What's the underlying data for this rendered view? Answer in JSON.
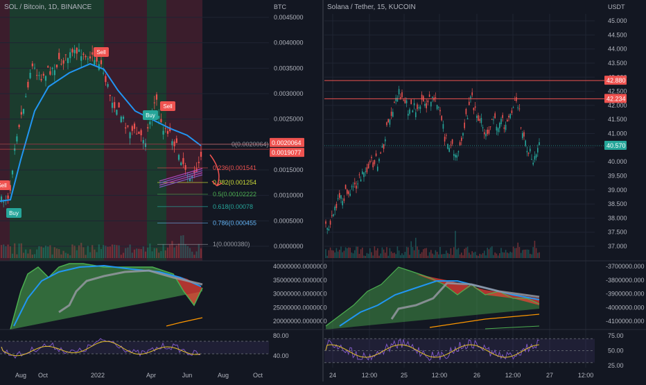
{
  "colors": {
    "background": "#131722",
    "grid": "#1f2433",
    "axis_text": "#b2b5be",
    "green_bg": "#1f4a33",
    "red_bg": "#4a2030",
    "up": "#26a69a",
    "down": "#ef5350",
    "ma_blue": "#2196f3",
    "gray_line": "#9598a1",
    "orange_line": "#ff9800",
    "rsi_line": "#7e57c2",
    "rsi_ma": "#e6c229",
    "fill_green": "#4caf50",
    "fill_red": "#f44336"
  },
  "left_panel": {
    "title": "SOL / Bitcoin, 1D, BINANCE",
    "axis_unit": "BTC",
    "price_ticks": [
      "0.0045000",
      "0.0040000",
      "0.0035000",
      "0.0030000",
      "0.0025000",
      "0.0020000",
      "0.0015000",
      "0.0010000",
      "0.0005000",
      "0.0000000"
    ],
    "price_badges": [
      "0.0020064",
      "0.0019077"
    ],
    "volume_osc_ticks": [
      "40000000.0000000",
      "35000000.0000000",
      "30000000.0000000",
      "25000000.0000000",
      "20000000.0000000"
    ],
    "rsi_ticks": [
      "80.00",
      "40.00"
    ],
    "time_ticks": [
      "Aug",
      "Oct",
      "2022",
      "Apr",
      "Jun",
      "Aug",
      "Oct"
    ],
    "signals": [
      {
        "label": "Sell",
        "type": "sell"
      },
      {
        "label": "Sell",
        "type": "sell"
      },
      {
        "label": "Sell",
        "type": "sell"
      },
      {
        "label": "Buy",
        "type": "buy"
      },
      {
        "label": "Buy",
        "type": "buy"
      }
    ],
    "fib_levels": [
      {
        "label": "0(0.0020064)",
        "color": "#9598a1"
      },
      {
        "label": "0.236(0.001541",
        "color": "#ef5350"
      },
      {
        "label": "0.382(0.001254",
        "color": "#cddc39"
      },
      {
        "label": "0.5(0.00102222",
        "color": "#4caf50"
      },
      {
        "label": "0.618(0.00078",
        "color": "#26a69a"
      },
      {
        "label": "0.786(0.000455",
        "color": "#64b5f6"
      },
      {
        "label": "1(0.0000380)",
        "color": "#9598a1"
      }
    ]
  },
  "right_panel": {
    "title": "Solana / Tether, 15, KUCOIN",
    "axis_unit": "USDT",
    "price_ticks": [
      "45.000",
      "44.500",
      "44.000",
      "43.500",
      "43.000",
      "42.500",
      "42.000",
      "41.500",
      "41.000",
      "40.500",
      "40.000",
      "39.500",
      "39.000",
      "38.500",
      "38.000",
      "37.500",
      "37.000"
    ],
    "price_badges": [
      {
        "label": "42.880",
        "color": "#ef5350"
      },
      {
        "label": "42.234",
        "color": "#ef5350"
      },
      {
        "label": "40.570",
        "color": "#26a69a"
      }
    ],
    "osc_ticks": [
      "-3700000.000",
      "-3800000.000",
      "-3900000.000",
      "-4000000.000",
      "-4100000.000"
    ],
    "rsi_ticks": [
      "75.00",
      "50.00",
      "25.00"
    ],
    "time_ticks": [
      "24",
      "12:00",
      "25",
      "12:00",
      "26",
      "12:00",
      "27",
      "12:00"
    ]
  },
  "chart_data": [
    {
      "type": "candlestick",
      "title": "SOL / Bitcoin, 1D, BINANCE",
      "ylabel": "BTC",
      "ylim": [
        0,
        0.0045
      ],
      "x_ticks": [
        "Aug",
        "Oct",
        "2022",
        "Apr",
        "Jun",
        "Aug",
        "Oct"
      ],
      "close_path": [
        [
          "Jul",
          0.00085
        ],
        [
          "Aug",
          0.0011
        ],
        [
          "Aug",
          0.0022
        ],
        [
          "Sep",
          0.0033
        ],
        [
          "Oct",
          0.0036
        ],
        [
          "Oct",
          0.0038
        ],
        [
          "Nov",
          0.0037
        ],
        [
          "Dec",
          0.0036
        ],
        [
          "Jan",
          0.0035
        ],
        [
          "Jan",
          0.0029
        ],
        [
          "Feb",
          0.0023
        ],
        [
          "Mar",
          0.002
        ],
        [
          "Apr",
          0.0029
        ],
        [
          "Apr",
          0.0024
        ],
        [
          "May",
          0.0018
        ],
        [
          "Jun",
          0.0013
        ],
        [
          "Jun",
          0.0019
        ]
      ],
      "fib_retracement": [
        {
          "level": 0,
          "price": 0.0020064
        },
        {
          "level": 0.236,
          "price": 0.001541
        },
        {
          "level": 0.382,
          "price": 0.001254
        },
        {
          "level": 0.5,
          "price": 0.00102222
        },
        {
          "level": 0.618,
          "price": 0.00078
        },
        {
          "level": 0.786,
          "price": 0.000455
        },
        {
          "level": 1,
          "price": 3.8e-05
        }
      ],
      "horizontal_lines": [
        0.0020064,
        0.0019077
      ]
    },
    {
      "type": "candlestick",
      "title": "Solana / Tether, 15, KUCOIN",
      "ylabel": "USDT",
      "ylim": [
        37.0,
        45.0
      ],
      "x_ticks": [
        "24",
        "12:00",
        "25",
        "12:00",
        "26",
        "12:00",
        "27",
        "12:00"
      ],
      "close_path": [
        [
          "24",
          38.0
        ],
        [
          "24",
          38.6
        ],
        [
          "24 12:00",
          39.6
        ],
        [
          "24 12:00",
          41.2
        ],
        [
          "25",
          42.6
        ],
        [
          "25",
          42.0
        ],
        [
          "25 12:00",
          41.8
        ],
        [
          "25 12:00",
          42.4
        ],
        [
          "25 12:00",
          40.8
        ],
        [
          "26",
          41.0
        ],
        [
          "26",
          42.5
        ],
        [
          "26",
          41.8
        ],
        [
          "26 12:00",
          41.6
        ],
        [
          "26 12:00",
          42.4
        ],
        [
          "26 12:00",
          40.8
        ],
        [
          "26 12:00",
          40.2
        ],
        [
          "26 12:00",
          40.57
        ]
      ],
      "horizontal_lines": [
        42.88,
        42.234
      ],
      "last_price": 40.57
    }
  ]
}
